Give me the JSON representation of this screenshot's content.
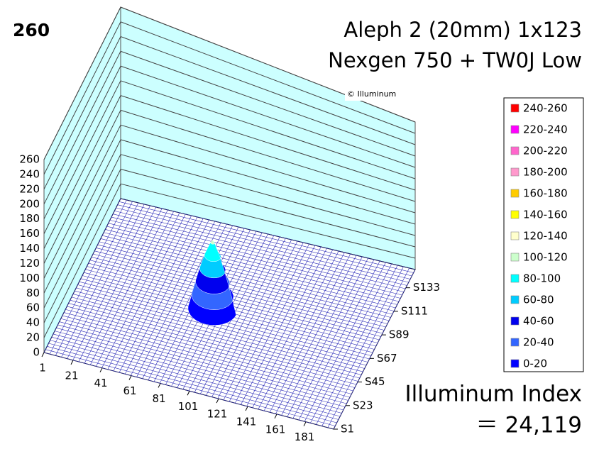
{
  "chart_data": {
    "type": "surface",
    "corner_label": "260",
    "title_lines": [
      "Aleph 2 (20mm) 1x123",
      "Nexgen 750 + TW0J Low"
    ],
    "watermark": "© Illuminum",
    "index_label": "Illuminum Index",
    "index_value": "＝ 24,119",
    "xlim": [
      1,
      200
    ],
    "xticks": [
      1,
      21,
      41,
      61,
      81,
      101,
      121,
      141,
      161,
      181
    ],
    "ylim": [
      1,
      150
    ],
    "yticks": [
      {
        "value": 1,
        "label": "S1"
      },
      {
        "value": 23,
        "label": "S23"
      },
      {
        "value": 45,
        "label": "S45"
      },
      {
        "value": 67,
        "label": "S67"
      },
      {
        "value": 89,
        "label": "S89"
      },
      {
        "value": 111,
        "label": "S111"
      },
      {
        "value": 133,
        "label": "S133"
      }
    ],
    "zlim": [
      0,
      260
    ],
    "zticks": [
      0,
      20,
      40,
      60,
      80,
      100,
      120,
      140,
      160,
      180,
      200,
      220,
      240,
      260
    ],
    "peak": {
      "x": 90,
      "y": 75,
      "value": 104
    },
    "legend": [
      {
        "label": "240-260",
        "color": "#ff0000"
      },
      {
        "label": "220-240",
        "color": "#ff00ff"
      },
      {
        "label": "200-220",
        "color": "#ff66cc"
      },
      {
        "label": "180-200",
        "color": "#ff99cc"
      },
      {
        "label": "160-180",
        "color": "#ffcc00"
      },
      {
        "label": "140-160",
        "color": "#ffff00"
      },
      {
        "label": "120-140",
        "color": "#ffffcc"
      },
      {
        "label": "100-120",
        "color": "#ccffcc"
      },
      {
        "label": "80-100",
        "color": "#00ffff"
      },
      {
        "label": "60-80",
        "color": "#00ccff"
      },
      {
        "label": "40-60",
        "color": "#0000ee"
      },
      {
        "label": "20-40",
        "color": "#3366ff"
      },
      {
        "label": "0-20",
        "color": "#0000ff"
      }
    ]
  }
}
